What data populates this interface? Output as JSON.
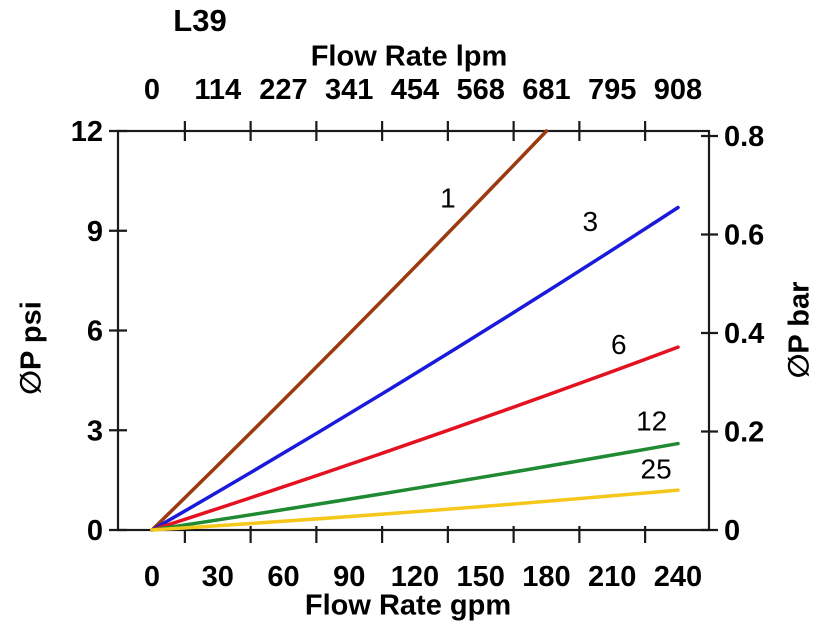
{
  "chart_data": {
    "type": "line",
    "title": "L39",
    "grid": false,
    "legend": "inline-labels-on-curves",
    "background": "#ffffff",
    "axis_color": "#1a1a1a",
    "text_color": "#000000",
    "axes": {
      "top": {
        "label": "Flow Rate lpm",
        "tick_labels": [
          "0",
          "114",
          "227",
          "341",
          "454",
          "568",
          "681",
          "795",
          "908"
        ]
      },
      "bottom": {
        "label": "Flow Rate gpm",
        "tick_labels": [
          "0",
          "30",
          "60",
          "90",
          "120",
          "150",
          "180",
          "210",
          "240"
        ],
        "range": [
          0,
          240
        ]
      },
      "left": {
        "label": "∅P psi",
        "tick_labels": [
          "0",
          "3",
          "6",
          "9",
          "12"
        ],
        "range": [
          0,
          12
        ]
      },
      "right": {
        "label": "∅P bar",
        "tick_labels": [
          "0",
          "0.2",
          "0.4",
          "0.6",
          "0.8"
        ],
        "range": [
          0,
          0.8
        ]
      }
    },
    "series": [
      {
        "name": "1",
        "color": "#9B3A10",
        "points_gpm_psi": [
          [
            0,
            0
          ],
          [
            90,
            5.9
          ],
          [
            180,
            12
          ]
        ],
        "label_at_gpm_psi": [
          135,
          10.0
        ]
      },
      {
        "name": "3",
        "color": "#1A1ADB",
        "points_gpm_psi": [
          [
            0,
            0
          ],
          [
            120,
            4.7
          ],
          [
            240,
            9.7
          ]
        ],
        "label_at_gpm_psi": [
          200,
          9.3
        ]
      },
      {
        "name": "6",
        "color": "#E41220",
        "points_gpm_psi": [
          [
            0,
            0
          ],
          [
            120,
            2.65
          ],
          [
            240,
            5.5
          ]
        ],
        "label_at_gpm_psi": [
          213,
          5.6
        ]
      },
      {
        "name": "12",
        "color": "#1F8A32",
        "points_gpm_psi": [
          [
            0,
            0
          ],
          [
            120,
            1.25
          ],
          [
            240,
            2.6
          ]
        ],
        "label_at_gpm_psi": [
          228,
          3.3
        ]
      },
      {
        "name": "25",
        "color": "#F5C71A",
        "points_gpm_psi": [
          [
            0,
            0
          ],
          [
            120,
            0.55
          ],
          [
            240,
            1.2
          ]
        ],
        "label_at_gpm_psi": [
          230,
          1.85
        ]
      }
    ]
  }
}
